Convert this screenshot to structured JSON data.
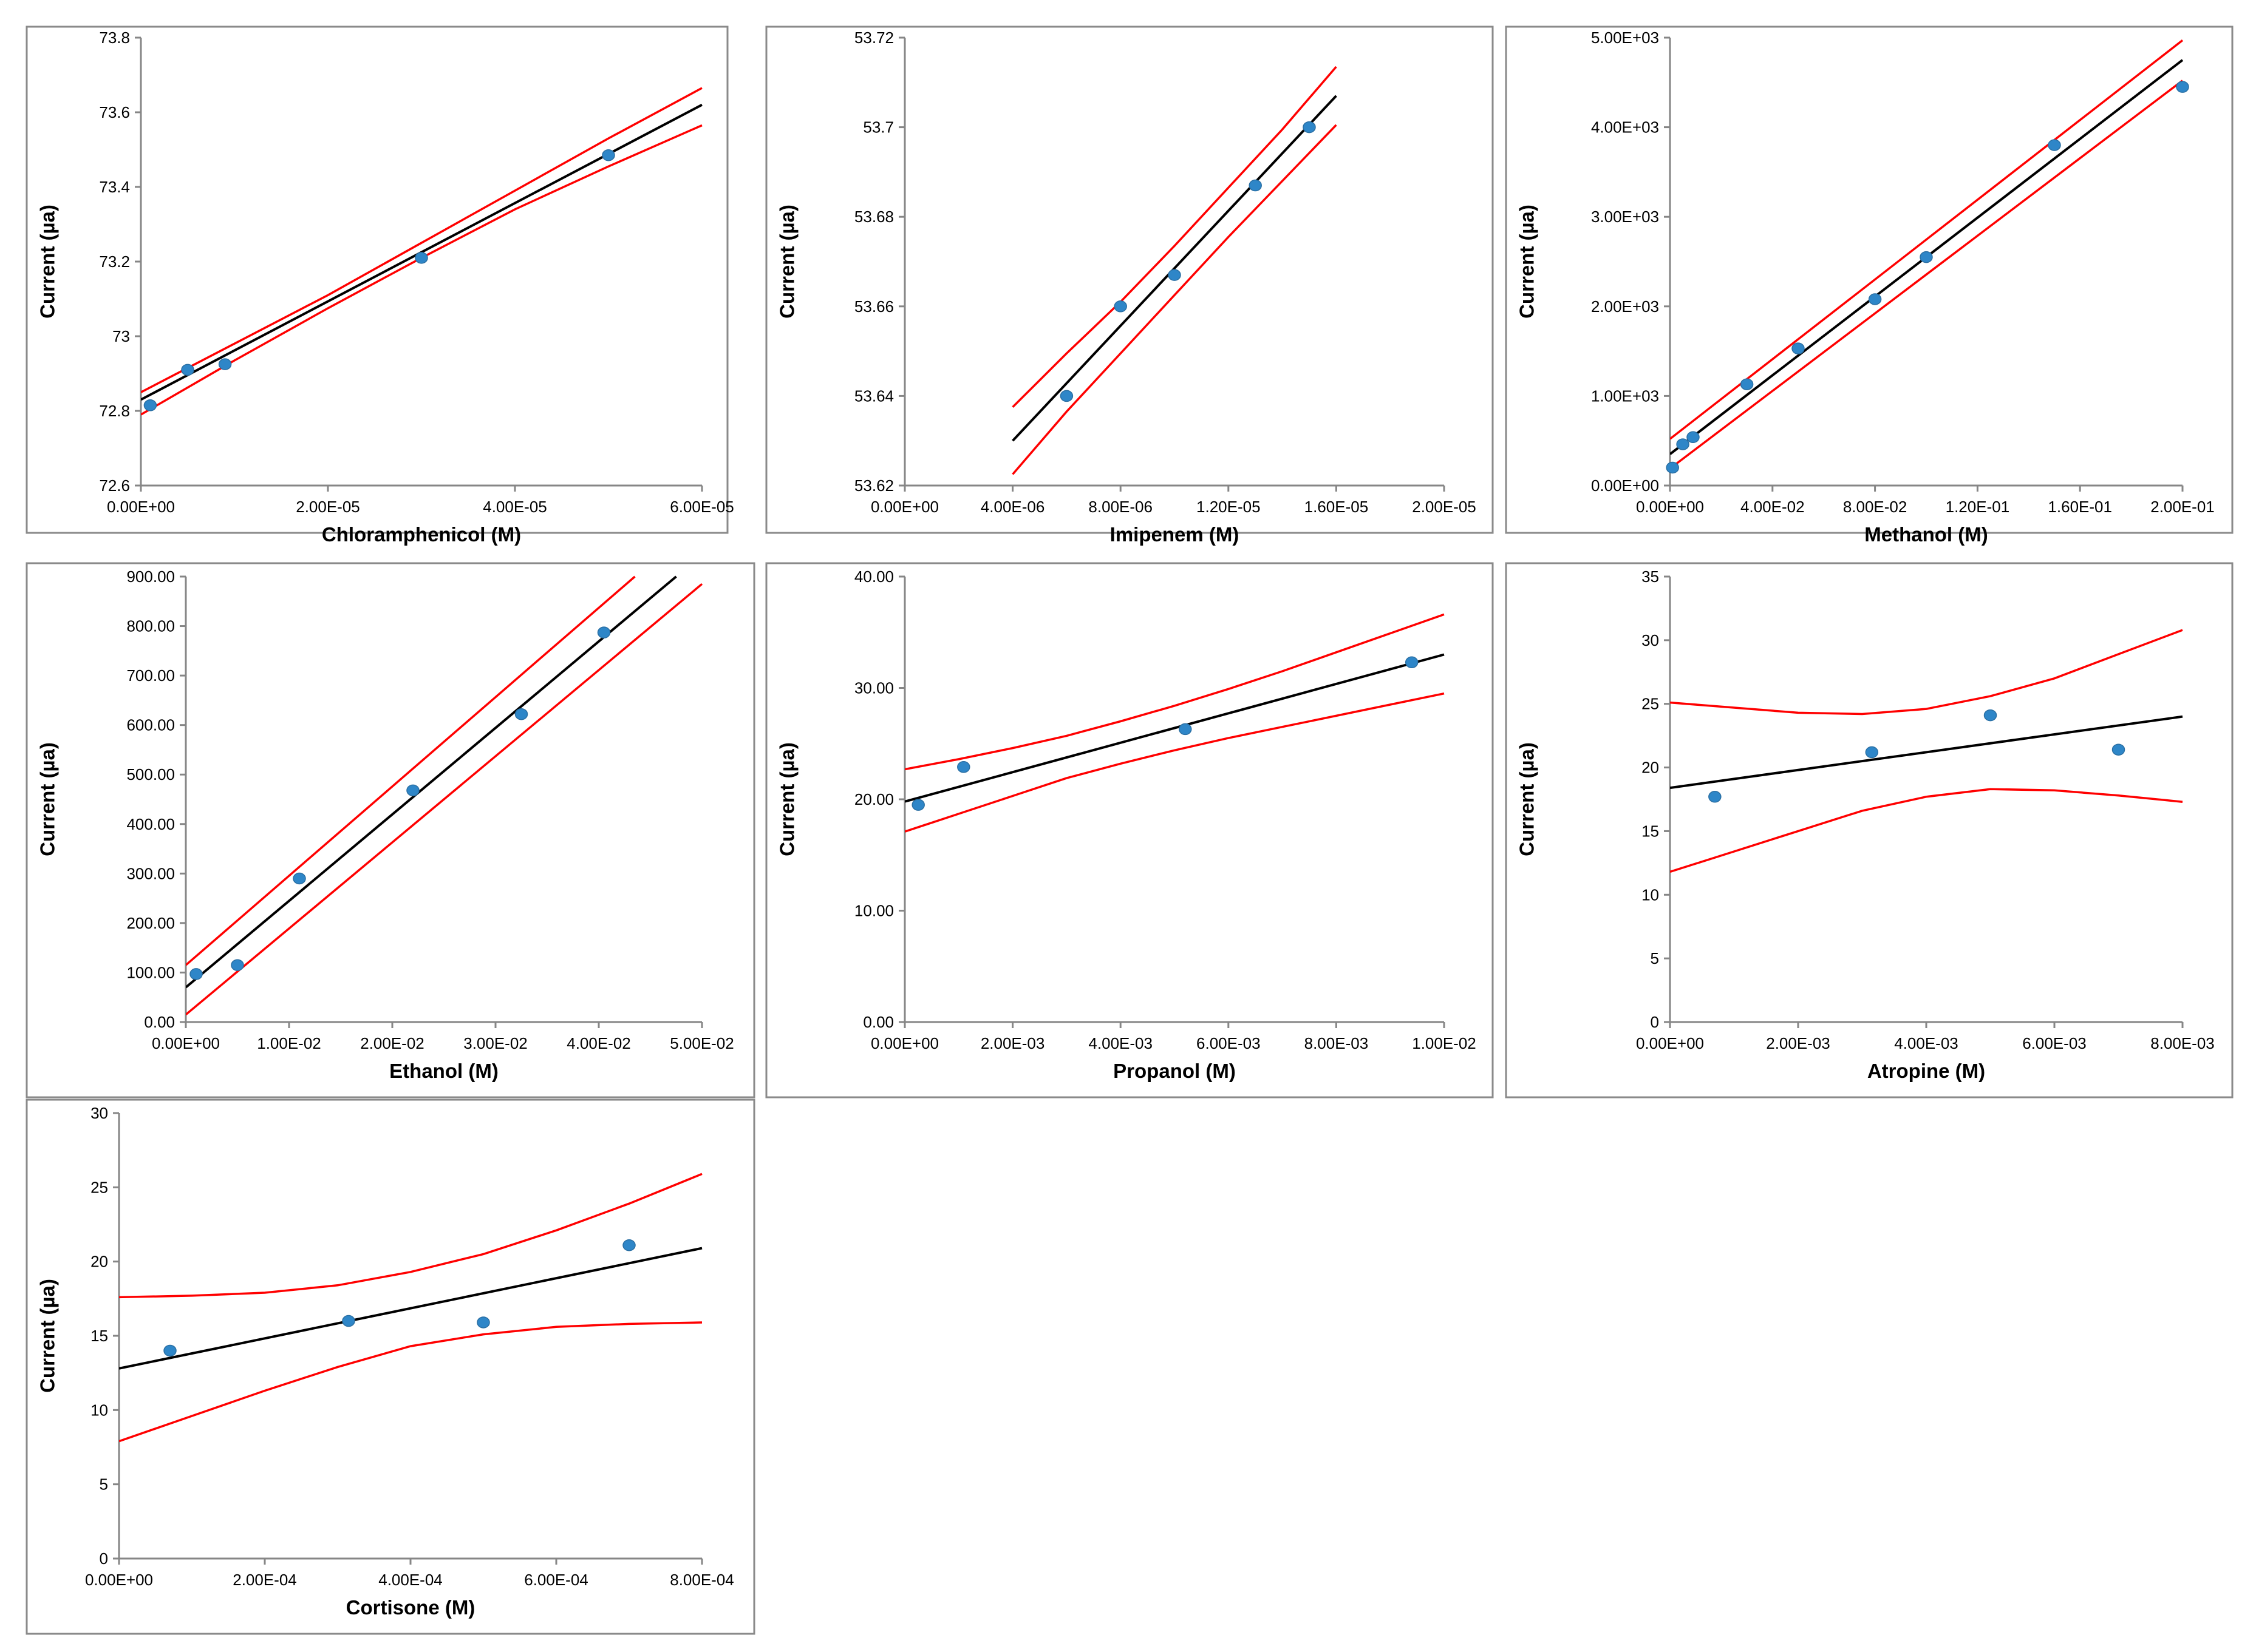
{
  "colors": {
    "points": "#2e86c8",
    "fit": "#000000",
    "band": "#ff0000",
    "frame": "#8a8a8a",
    "axis": "#868686"
  },
  "chart_data": [
    {
      "type": "scatter",
      "xlabel": "Chloramphenicol (M)",
      "ylabel": "Current (µa)",
      "xlim": [
        0,
        6e-05
      ],
      "ylim": [
        72.6,
        73.8
      ],
      "x_ticks": [
        0,
        2e-05,
        4e-05,
        6e-05
      ],
      "x_tick_labels": [
        "0.00E+00",
        "2.00E-05",
        "4.00E-05",
        "6.00E-05"
      ],
      "y_ticks": [
        72.6,
        72.8,
        73.0,
        73.2,
        73.4,
        73.6,
        73.8
      ],
      "y_tick_labels": [
        "72.6",
        "72.8",
        "73",
        "73.2",
        "73.4",
        "73.6",
        "73.8"
      ],
      "points": [
        [
          1e-06,
          72.815
        ],
        [
          5e-06,
          72.91
        ],
        [
          9e-06,
          72.925
        ],
        [
          3e-05,
          73.21
        ],
        [
          5e-05,
          73.485
        ]
      ],
      "fit_line": [
        [
          0,
          72.83
        ],
        [
          6e-05,
          73.62
        ]
      ],
      "upper_band": [
        [
          0,
          72.85
        ],
        [
          1e-05,
          72.98
        ],
        [
          2e-05,
          73.11
        ],
        [
          3e-05,
          73.25
        ],
        [
          4e-05,
          73.39
        ],
        [
          5e-05,
          73.53
        ],
        [
          6e-05,
          73.665
        ]
      ],
      "lower_band": [
        [
          0,
          72.79
        ],
        [
          1e-05,
          72.935
        ],
        [
          2e-05,
          73.075
        ],
        [
          3e-05,
          73.21
        ],
        [
          4e-05,
          73.34
        ],
        [
          5e-05,
          73.455
        ],
        [
          6e-05,
          73.565
        ]
      ]
    },
    {
      "type": "scatter",
      "xlabel": "Imipenem (M)",
      "ylabel": "Current (µa)",
      "xlim": [
        0,
        2e-05
      ],
      "ylim": [
        53.62,
        53.72
      ],
      "x_ticks": [
        0,
        4e-06,
        8e-06,
        1.2e-05,
        1.6e-05,
        2e-05
      ],
      "x_tick_labels": [
        "0.00E+00",
        "4.00E-06",
        "8.00E-06",
        "1.20E-05",
        "1.60E-05",
        "2.00E-05"
      ],
      "y_ticks": [
        53.62,
        53.64,
        53.66,
        53.68,
        53.7,
        53.72
      ],
      "y_tick_labels": [
        "53.62",
        "53.64",
        "53.66",
        "53.68",
        "53.7",
        "53.72"
      ],
      "points": [
        [
          6e-06,
          53.64
        ],
        [
          8e-06,
          53.66
        ],
        [
          1e-05,
          53.667
        ],
        [
          1.3e-05,
          53.687
        ],
        [
          1.5e-05,
          53.7
        ]
      ],
      "fit_line": [
        [
          4e-06,
          53.63
        ],
        [
          1.6e-05,
          53.707
        ]
      ],
      "upper_band": [
        [
          4e-06,
          53.6375
        ],
        [
          6e-06,
          53.6495
        ],
        [
          8e-06,
          53.661
        ],
        [
          1e-05,
          53.6735
        ],
        [
          1.2e-05,
          53.6865
        ],
        [
          1.4e-05,
          53.6995
        ],
        [
          1.6e-05,
          53.7135
        ]
      ],
      "lower_band": [
        [
          4e-06,
          53.6225
        ],
        [
          6e-06,
          53.6365
        ],
        [
          8e-06,
          53.6495
        ],
        [
          1e-05,
          53.6625
        ],
        [
          1.2e-05,
          53.6755
        ],
        [
          1.4e-05,
          53.688
        ],
        [
          1.6e-05,
          53.7005
        ]
      ]
    },
    {
      "type": "scatter",
      "xlabel": "Methanol (M)",
      "ylabel": "Current (µa)",
      "xlim": [
        0,
        0.2
      ],
      "ylim": [
        0,
        5000
      ],
      "x_ticks": [
        0,
        0.04,
        0.08,
        0.12,
        0.16,
        0.2
      ],
      "x_tick_labels": [
        "0.00E+00",
        "4.00E-02",
        "8.00E-02",
        "1.20E-01",
        "1.60E-01",
        "2.00E-01"
      ],
      "y_ticks": [
        0,
        1000,
        2000,
        3000,
        4000,
        5000
      ],
      "y_tick_labels": [
        "0.00E+00",
        "1.00E+03",
        "2.00E+03",
        "3.00E+03",
        "4.00E+03",
        "5.00E+03"
      ],
      "points": [
        [
          0.001,
          200
        ],
        [
          0.005,
          460
        ],
        [
          0.009,
          540
        ],
        [
          0.03,
          1130
        ],
        [
          0.05,
          1530
        ],
        [
          0.08,
          2080
        ],
        [
          0.1,
          2550
        ],
        [
          0.15,
          3800
        ],
        [
          0.2,
          4450
        ]
      ],
      "fit_line": [
        [
          0,
          350
        ],
        [
          0.2,
          4750
        ]
      ],
      "upper_band": [
        [
          0,
          520
        ],
        [
          0.2,
          4970
        ]
      ],
      "lower_band": [
        [
          0,
          190
        ],
        [
          0.2,
          4520
        ]
      ]
    },
    {
      "type": "scatter",
      "xlabel": "Ethanol (M)",
      "ylabel": "Current (µa)",
      "xlim": [
        0,
        0.05
      ],
      "ylim": [
        0,
        900
      ],
      "x_ticks": [
        0,
        0.01,
        0.02,
        0.03,
        0.04,
        0.05
      ],
      "x_tick_labels": [
        "0.00E+00",
        "1.00E-02",
        "2.00E-02",
        "3.00E-02",
        "4.00E-02",
        "5.00E-02"
      ],
      "y_ticks": [
        0,
        100,
        200,
        300,
        400,
        500,
        600,
        700,
        800,
        900
      ],
      "y_tick_labels": [
        "0.00",
        "100.00",
        "200.00",
        "300.00",
        "400.00",
        "500.00",
        "600.00",
        "700.00",
        "800.00",
        "900.00"
      ],
      "points": [
        [
          0.001,
          97
        ],
        [
          0.005,
          115
        ],
        [
          0.011,
          290
        ],
        [
          0.022,
          468
        ],
        [
          0.0325,
          622
        ],
        [
          0.0405,
          787
        ]
      ],
      "fit_line": [
        [
          0,
          70
        ],
        [
          0.0475,
          900
        ]
      ],
      "upper_band": [
        [
          0,
          115
        ],
        [
          0.0435,
          900
        ]
      ],
      "lower_band": [
        [
          0,
          15
        ],
        [
          0.05,
          885
        ]
      ]
    },
    {
      "type": "scatter",
      "xlabel": "Propanol (M)",
      "ylabel": "Current (µa)",
      "xlim": [
        0,
        0.01
      ],
      "ylim": [
        0,
        40
      ],
      "x_ticks": [
        0,
        0.002,
        0.004,
        0.006,
        0.008,
        0.01
      ],
      "x_tick_labels": [
        "0.00E+00",
        "2.00E-03",
        "4.00E-03",
        "6.00E-03",
        "8.00E-03",
        "1.00E-02"
      ],
      "y_ticks": [
        0,
        10,
        20,
        30,
        40
      ],
      "y_tick_labels": [
        "0.00",
        "10.00",
        "20.00",
        "30.00",
        "40.00"
      ],
      "points": [
        [
          0.00025,
          19.5
        ],
        [
          0.00109,
          22.9
        ],
        [
          0.0052,
          26.3
        ],
        [
          0.0094,
          32.3
        ]
      ],
      "fit_line": [
        [
          0,
          19.8
        ],
        [
          0.01,
          33.0
        ]
      ],
      "upper_band": [
        [
          0,
          22.7
        ],
        [
          0.001,
          23.6
        ],
        [
          0.002,
          24.6
        ],
        [
          0.003,
          25.7
        ],
        [
          0.004,
          27.0
        ],
        [
          0.005,
          28.4
        ],
        [
          0.006,
          29.9
        ],
        [
          0.007,
          31.5
        ],
        [
          0.008,
          33.2
        ],
        [
          0.009,
          34.9
        ],
        [
          0.01,
          36.6
        ]
      ],
      "lower_band": [
        [
          0,
          17.1
        ],
        [
          0.001,
          18.7
        ],
        [
          0.002,
          20.3
        ],
        [
          0.003,
          21.9
        ],
        [
          0.004,
          23.2
        ],
        [
          0.005,
          24.4
        ],
        [
          0.006,
          25.5
        ],
        [
          0.007,
          26.5
        ],
        [
          0.008,
          27.5
        ],
        [
          0.009,
          28.5
        ],
        [
          0.01,
          29.5
        ]
      ]
    },
    {
      "type": "scatter",
      "xlabel": "Atropine (M)",
      "ylabel": "Current (µa)",
      "xlim": [
        0,
        0.008
      ],
      "ylim": [
        0,
        35
      ],
      "x_ticks": [
        0,
        0.002,
        0.004,
        0.006,
        0.008
      ],
      "x_tick_labels": [
        "0.00E+00",
        "2.00E-03",
        "4.00E-03",
        "6.00E-03",
        "8.00E-03"
      ],
      "y_ticks": [
        0,
        5,
        10,
        15,
        20,
        25,
        30,
        35
      ],
      "y_tick_labels": [
        "0",
        "5",
        "10",
        "15",
        "20",
        "25",
        "30",
        "35"
      ],
      "points": [
        [
          0.0007,
          17.7
        ],
        [
          0.00315,
          21.2
        ],
        [
          0.005,
          24.1
        ],
        [
          0.007,
          21.4
        ]
      ],
      "fit_line": [
        [
          0,
          18.4
        ],
        [
          0.008,
          24.0
        ]
      ],
      "upper_band": [
        [
          0,
          25.1
        ],
        [
          0.001,
          24.7
        ],
        [
          0.002,
          24.3
        ],
        [
          0.003,
          24.2
        ],
        [
          0.004,
          24.6
        ],
        [
          0.005,
          25.6
        ],
        [
          0.006,
          27.0
        ],
        [
          0.007,
          28.9
        ],
        [
          0.008,
          30.8
        ]
      ],
      "lower_band": [
        [
          0,
          11.8
        ],
        [
          0.001,
          13.4
        ],
        [
          0.002,
          15.0
        ],
        [
          0.003,
          16.6
        ],
        [
          0.004,
          17.7
        ],
        [
          0.005,
          18.3
        ],
        [
          0.006,
          18.2
        ],
        [
          0.007,
          17.8
        ],
        [
          0.008,
          17.3
        ]
      ]
    },
    {
      "type": "scatter",
      "xlabel": "Cortisone (M)",
      "ylabel": "Current (µa)",
      "xlim": [
        0,
        0.0008
      ],
      "ylim": [
        0,
        30
      ],
      "x_ticks": [
        0,
        0.0002,
        0.0004,
        0.0006,
        0.0008
      ],
      "x_tick_labels": [
        "0.00E+00",
        "2.00E-04",
        "4.00E-04",
        "6.00E-04",
        "8.00E-04"
      ],
      "y_ticks": [
        0,
        5,
        10,
        15,
        20,
        25,
        30
      ],
      "y_tick_labels": [
        "0",
        "5",
        "10",
        "15",
        "20",
        "25",
        "30"
      ],
      "points": [
        [
          7e-05,
          14.0
        ],
        [
          0.000315,
          16.0
        ],
        [
          0.0005,
          15.9
        ],
        [
          0.0007,
          21.1
        ]
      ],
      "fit_line": [
        [
          0,
          12.8
        ],
        [
          0.0008,
          20.9
        ]
      ],
      "upper_band": [
        [
          0,
          17.6
        ],
        [
          0.0001,
          17.7
        ],
        [
          0.0002,
          17.9
        ],
        [
          0.0003,
          18.4
        ],
        [
          0.0004,
          19.3
        ],
        [
          0.0005,
          20.5
        ],
        [
          0.0006,
          22.1
        ],
        [
          0.0007,
          23.9
        ],
        [
          0.0008,
          25.9
        ]
      ],
      "lower_band": [
        [
          0,
          7.9
        ],
        [
          0.0001,
          9.6
        ],
        [
          0.0002,
          11.3
        ],
        [
          0.0003,
          12.9
        ],
        [
          0.0004,
          14.3
        ],
        [
          0.0005,
          15.1
        ],
        [
          0.0006,
          15.6
        ],
        [
          0.0007,
          15.8
        ],
        [
          0.0008,
          15.9
        ]
      ]
    }
  ]
}
